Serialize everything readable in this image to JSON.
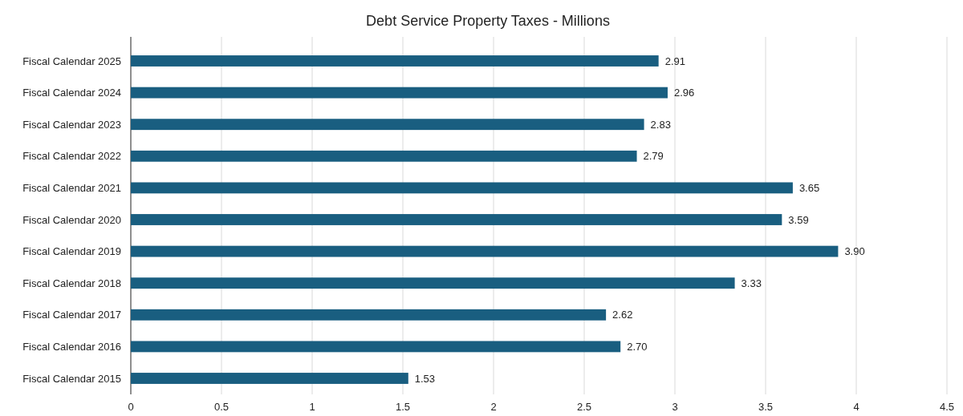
{
  "chart_data": {
    "type": "bar",
    "orientation": "horizontal",
    "title": "Debt Service Property Taxes - Millions",
    "categories": [
      "Fiscal Calendar 2025",
      "Fiscal Calendar 2024",
      "Fiscal Calendar 2023",
      "Fiscal Calendar 2022",
      "Fiscal Calendar 2021",
      "Fiscal Calendar 2020",
      "Fiscal Calendar 2019",
      "Fiscal Calendar 2018",
      "Fiscal Calendar 2017",
      "Fiscal Calendar 2016",
      "Fiscal Calendar 2015"
    ],
    "values": [
      2.91,
      2.96,
      2.83,
      2.79,
      3.65,
      3.59,
      3.9,
      3.33,
      2.62,
      2.7,
      1.53
    ],
    "value_labels": [
      "2.91",
      "2.96",
      "2.83",
      "2.79",
      "3.65",
      "3.59",
      "3.90",
      "3.33",
      "2.62",
      "2.70",
      "1.53"
    ],
    "color": "#195e80",
    "xlim": [
      0,
      4.5
    ],
    "xticks": [
      0,
      0.5,
      1,
      1.5,
      2,
      2.5,
      3,
      3.5,
      4,
      4.5
    ],
    "grid": "x"
  }
}
